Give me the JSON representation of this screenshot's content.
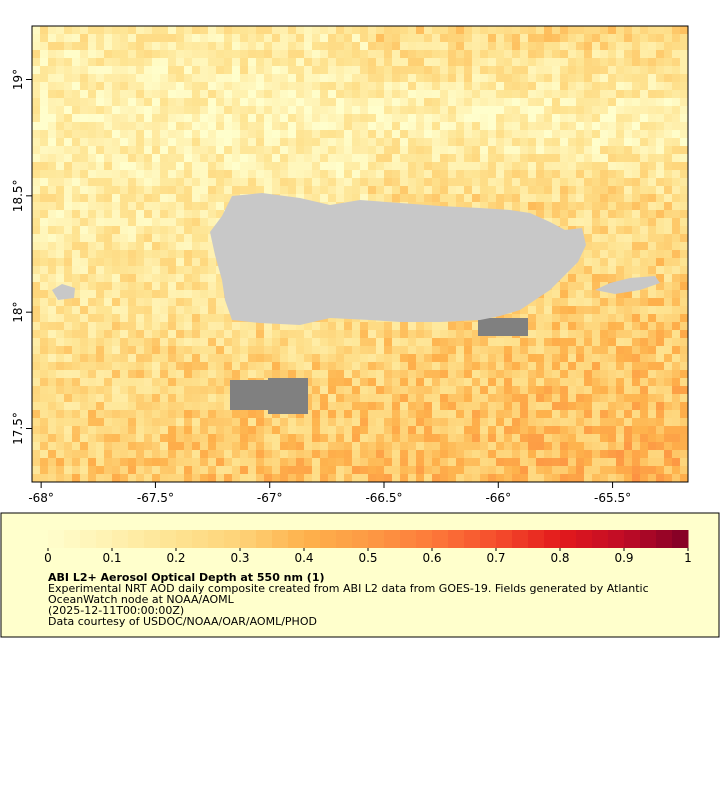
{
  "map": {
    "xlim": [
      -68.04,
      -65.17
    ],
    "ylim": [
      17.27,
      19.23
    ],
    "xticks": [
      {
        "value": -68,
        "label": "-68°"
      },
      {
        "value": -67.5,
        "label": "-67.5°"
      },
      {
        "value": -67,
        "label": "-67°"
      },
      {
        "value": -66.5,
        "label": "-66.5°"
      },
      {
        "value": -66,
        "label": "-66°"
      },
      {
        "value": -65.5,
        "label": "-65.5°"
      }
    ],
    "yticks": [
      {
        "value": 17.5,
        "label": "17.5°"
      },
      {
        "value": 18,
        "label": "18°"
      },
      {
        "value": 18.5,
        "label": "18.5°"
      },
      {
        "value": 19,
        "label": "19°"
      }
    ],
    "land_color": "#c8c8c8",
    "nodata_color": "#808080"
  },
  "colorbar": {
    "lim": [
      0,
      1
    ],
    "ticks": [
      0,
      0.1,
      0.2,
      0.3,
      0.4,
      0.5,
      0.6,
      0.7,
      0.8,
      0.9,
      1
    ],
    "colors": [
      "#fffecc",
      "#fff1b0",
      "#fee391",
      "#fed378",
      "#feb24c",
      "#fd9a44",
      "#fd7a3a",
      "#f54d2c",
      "#e31a1c",
      "#c00b26",
      "#800026"
    ]
  },
  "legend": {
    "title": "ABI L2+ Aerosol Optical Depth at 550 nm (1)",
    "lines": [
      "Experimental NRT AOD daily composite created from ABI L2 data from GOES-19. Fields generated by Atlantic",
      "OceanWatch node at NOAA/AOML",
      "(2025-12-11T00:00:00Z)",
      "Data courtesy of USDOC/NOAA/OAR/AOML/PHOD"
    ]
  }
}
